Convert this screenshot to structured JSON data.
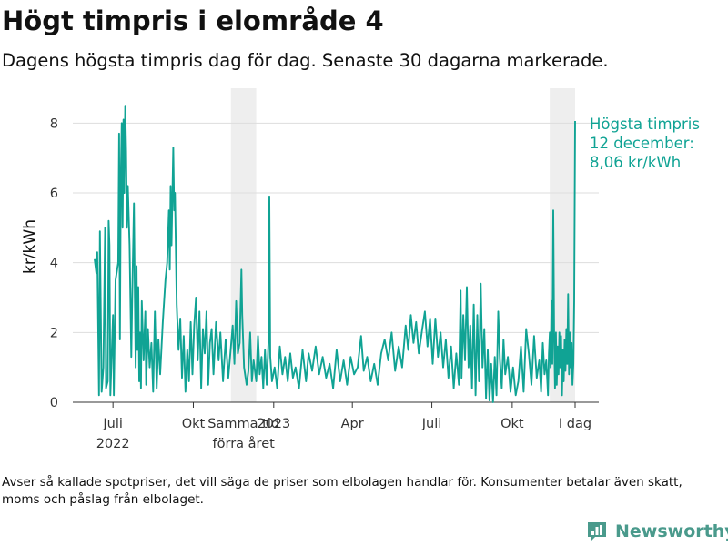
{
  "title": "Högt timpris i elområde 4",
  "subtitle": "Dagens högsta timpris dag för dag. Senaste 30 dagarna markerade.",
  "footnote": "Avser så kallade spotpriser, det vill säga de priser som elbolagen handlar för. Konsumenter betalar även skatt, moms och påslag från elbolaget.",
  "brand": {
    "name": "Newsworthy",
    "color": "#4a9a8c"
  },
  "colors": {
    "line": "#10a394",
    "highlight_band": "#eeeeee",
    "grid": "#dddddd",
    "axis": "#333333"
  },
  "chart_data": {
    "type": "line",
    "title": "Högt timpris i elområde 4",
    "ylabel": "kr/kWh",
    "xlabel": "",
    "ylim": [
      0,
      9
    ],
    "y_ticks": [
      {
        "value": 0,
        "label": "0"
      },
      {
        "value": 2,
        "label": "2"
      },
      {
        "value": 4,
        "label": "4"
      },
      {
        "value": 6,
        "label": "6"
      },
      {
        "value": 8,
        "label": "8"
      }
    ],
    "x_range": [
      "2022-06-10",
      "2023-12-12"
    ],
    "x_ticks": [
      {
        "date": "2022-07-01",
        "label": "Juli",
        "label2": "2022"
      },
      {
        "date": "2022-10-01",
        "label": "Okt"
      },
      {
        "date": "2023-01-01",
        "label": "2023"
      },
      {
        "date": "2023-04-01",
        "label": "Apr"
      },
      {
        "date": "2023-07-01",
        "label": "Juli"
      },
      {
        "date": "2023-10-01",
        "label": "Okt"
      },
      {
        "date": "2023-12-12",
        "label": "I dag"
      }
    ],
    "highlight_bands": [
      {
        "start": "2022-11-13",
        "end": "2022-12-12",
        "label": "Samma tid",
        "label2": "förra året"
      },
      {
        "start": "2023-11-13",
        "end": "2023-12-12"
      }
    ],
    "annotation": {
      "date": "2023-12-12",
      "value": 8.06,
      "lines": [
        "Högsta timpris",
        "12 december:",
        "8,06 kr/kWh"
      ]
    },
    "grid": "horizontal",
    "series": [
      {
        "points": [
          [
            "2022-06-10",
            4.1
          ],
          [
            "2022-06-12",
            3.7
          ],
          [
            "2022-06-13",
            4.3
          ],
          [
            "2022-06-15",
            0.2
          ],
          [
            "2022-06-16",
            4.9
          ],
          [
            "2022-06-18",
            0.3
          ],
          [
            "2022-06-20",
            1.0
          ],
          [
            "2022-06-22",
            5.0
          ],
          [
            "2022-06-23",
            0.4
          ],
          [
            "2022-06-25",
            0.6
          ],
          [
            "2022-06-26",
            5.2
          ],
          [
            "2022-06-27",
            4.5
          ],
          [
            "2022-06-28",
            0.2
          ],
          [
            "2022-07-01",
            2.5
          ],
          [
            "2022-07-02",
            0.2
          ],
          [
            "2022-07-04",
            3.5
          ],
          [
            "2022-07-07",
            4.0
          ],
          [
            "2022-07-08",
            7.7
          ],
          [
            "2022-07-09",
            1.8
          ],
          [
            "2022-07-10",
            6.5
          ],
          [
            "2022-07-11",
            8.0
          ],
          [
            "2022-07-12",
            5.0
          ],
          [
            "2022-07-13",
            8.1
          ],
          [
            "2022-07-14",
            6.0
          ],
          [
            "2022-07-15",
            8.5
          ],
          [
            "2022-07-16",
            7.2
          ],
          [
            "2022-07-17",
            5.0
          ],
          [
            "2022-07-18",
            6.2
          ],
          [
            "2022-07-20",
            4.5
          ],
          [
            "2022-07-22",
            1.3
          ],
          [
            "2022-07-23",
            3.0
          ],
          [
            "2022-07-25",
            5.7
          ],
          [
            "2022-07-26",
            3.0
          ],
          [
            "2022-07-27",
            1.0
          ],
          [
            "2022-07-28",
            3.9
          ],
          [
            "2022-07-29",
            1.5
          ],
          [
            "2022-07-30",
            3.3
          ],
          [
            "2022-07-31",
            0.6
          ],
          [
            "2022-08-01",
            2.0
          ],
          [
            "2022-08-02",
            0.4
          ],
          [
            "2022-08-03",
            2.9
          ],
          [
            "2022-08-05",
            1.2
          ],
          [
            "2022-08-07",
            2.6
          ],
          [
            "2022-08-08",
            0.5
          ],
          [
            "2022-08-10",
            2.1
          ],
          [
            "2022-08-12",
            1.0
          ],
          [
            "2022-08-14",
            1.7
          ],
          [
            "2022-08-16",
            0.3
          ],
          [
            "2022-08-18",
            2.6
          ],
          [
            "2022-08-20",
            0.4
          ],
          [
            "2022-08-22",
            1.8
          ],
          [
            "2022-08-24",
            0.8
          ],
          [
            "2022-08-27",
            2.3
          ],
          [
            "2022-08-30",
            3.5
          ],
          [
            "2022-09-01",
            4.0
          ],
          [
            "2022-09-03",
            5.5
          ],
          [
            "2022-09-04",
            3.8
          ],
          [
            "2022-09-05",
            6.2
          ],
          [
            "2022-09-06",
            4.5
          ],
          [
            "2022-09-08",
            7.3
          ],
          [
            "2022-09-09",
            5.5
          ],
          [
            "2022-09-10",
            6.0
          ],
          [
            "2022-09-12",
            2.8
          ],
          [
            "2022-09-14",
            1.5
          ],
          [
            "2022-09-16",
            2.4
          ],
          [
            "2022-09-18",
            0.7
          ],
          [
            "2022-09-20",
            1.9
          ],
          [
            "2022-09-22",
            0.3
          ],
          [
            "2022-09-24",
            1.5
          ],
          [
            "2022-09-26",
            0.6
          ],
          [
            "2022-09-28",
            2.3
          ],
          [
            "2022-09-30",
            0.8
          ],
          [
            "2022-10-02",
            2.2
          ],
          [
            "2022-10-04",
            3.0
          ],
          [
            "2022-10-06",
            1.2
          ],
          [
            "2022-10-08",
            2.6
          ],
          [
            "2022-10-10",
            0.4
          ],
          [
            "2022-10-12",
            2.1
          ],
          [
            "2022-10-14",
            1.4
          ],
          [
            "2022-10-16",
            2.6
          ],
          [
            "2022-10-18",
            0.5
          ],
          [
            "2022-10-20",
            1.7
          ],
          [
            "2022-10-22",
            2.1
          ],
          [
            "2022-10-24",
            0.8
          ],
          [
            "2022-10-27",
            2.3
          ],
          [
            "2022-10-30",
            1.2
          ],
          [
            "2022-11-01",
            2.0
          ],
          [
            "2022-11-04",
            0.6
          ],
          [
            "2022-11-07",
            1.8
          ],
          [
            "2022-11-10",
            0.7
          ],
          [
            "2022-11-13",
            1.6
          ],
          [
            "2022-11-15",
            2.2
          ],
          [
            "2022-11-17",
            1.1
          ],
          [
            "2022-11-19",
            2.9
          ],
          [
            "2022-11-21",
            1.4
          ],
          [
            "2022-11-23",
            1.7
          ],
          [
            "2022-11-25",
            3.8
          ],
          [
            "2022-11-26",
            2.5
          ],
          [
            "2022-11-28",
            1.0
          ],
          [
            "2022-12-01",
            0.5
          ],
          [
            "2022-12-03",
            0.9
          ],
          [
            "2022-12-05",
            2.0
          ],
          [
            "2022-12-07",
            0.6
          ],
          [
            "2022-12-09",
            1.2
          ],
          [
            "2022-12-12",
            0.6
          ],
          [
            "2022-12-14",
            1.9
          ],
          [
            "2022-12-16",
            0.8
          ],
          [
            "2022-12-18",
            1.3
          ],
          [
            "2022-12-20",
            0.4
          ],
          [
            "2022-12-22",
            1.5
          ],
          [
            "2022-12-24",
            0.5
          ],
          [
            "2022-12-26",
            1.7
          ],
          [
            "2022-12-27",
            5.9
          ],
          [
            "2022-12-28",
            1.3
          ],
          [
            "2022-12-30",
            0.6
          ],
          [
            "2023-01-02",
            1.0
          ],
          [
            "2023-01-05",
            0.4
          ],
          [
            "2023-01-08",
            1.6
          ],
          [
            "2023-01-11",
            0.8
          ],
          [
            "2023-01-14",
            1.3
          ],
          [
            "2023-01-17",
            0.6
          ],
          [
            "2023-01-20",
            1.4
          ],
          [
            "2023-01-23",
            0.7
          ],
          [
            "2023-01-26",
            1.0
          ],
          [
            "2023-01-30",
            0.4
          ],
          [
            "2023-02-03",
            1.5
          ],
          [
            "2023-02-07",
            0.6
          ],
          [
            "2023-02-10",
            1.4
          ],
          [
            "2023-02-14",
            0.9
          ],
          [
            "2023-02-18",
            1.6
          ],
          [
            "2023-02-22",
            0.8
          ],
          [
            "2023-02-26",
            1.3
          ],
          [
            "2023-03-02",
            0.7
          ],
          [
            "2023-03-06",
            1.1
          ],
          [
            "2023-03-10",
            0.4
          ],
          [
            "2023-03-14",
            1.5
          ],
          [
            "2023-03-18",
            0.6
          ],
          [
            "2023-03-22",
            1.2
          ],
          [
            "2023-03-26",
            0.5
          ],
          [
            "2023-03-30",
            1.3
          ],
          [
            "2023-04-03",
            0.8
          ],
          [
            "2023-04-07",
            1.0
          ],
          [
            "2023-04-11",
            1.9
          ],
          [
            "2023-04-14",
            0.9
          ],
          [
            "2023-04-18",
            1.3
          ],
          [
            "2023-04-22",
            0.6
          ],
          [
            "2023-04-26",
            1.1
          ],
          [
            "2023-04-30",
            0.5
          ],
          [
            "2023-05-04",
            1.4
          ],
          [
            "2023-05-08",
            1.8
          ],
          [
            "2023-05-12",
            1.2
          ],
          [
            "2023-05-16",
            2.0
          ],
          [
            "2023-05-20",
            0.9
          ],
          [
            "2023-05-24",
            1.6
          ],
          [
            "2023-05-28",
            1.0
          ],
          [
            "2023-06-01",
            2.2
          ],
          [
            "2023-06-04",
            1.5
          ],
          [
            "2023-06-07",
            2.5
          ],
          [
            "2023-06-10",
            1.7
          ],
          [
            "2023-06-13",
            2.3
          ],
          [
            "2023-06-16",
            1.4
          ],
          [
            "2023-06-20",
            2.1
          ],
          [
            "2023-06-23",
            2.6
          ],
          [
            "2023-06-26",
            1.6
          ],
          [
            "2023-06-29",
            2.4
          ],
          [
            "2023-07-02",
            1.1
          ],
          [
            "2023-07-05",
            2.4
          ],
          [
            "2023-07-08",
            1.3
          ],
          [
            "2023-07-11",
            2.0
          ],
          [
            "2023-07-14",
            1.0
          ],
          [
            "2023-07-17",
            1.8
          ],
          [
            "2023-07-20",
            0.7
          ],
          [
            "2023-07-23",
            1.6
          ],
          [
            "2023-07-26",
            0.4
          ],
          [
            "2023-07-29",
            1.4
          ],
          [
            "2023-08-01",
            0.5
          ],
          [
            "2023-08-03",
            3.2
          ],
          [
            "2023-08-04",
            0.7
          ],
          [
            "2023-08-06",
            2.5
          ],
          [
            "2023-08-08",
            1.2
          ],
          [
            "2023-08-10",
            3.3
          ],
          [
            "2023-08-12",
            1.0
          ],
          [
            "2023-08-14",
            2.2
          ],
          [
            "2023-08-16",
            0.4
          ],
          [
            "2023-08-18",
            2.8
          ],
          [
            "2023-08-20",
            0.2
          ],
          [
            "2023-08-22",
            2.5
          ],
          [
            "2023-08-24",
            0.6
          ],
          [
            "2023-08-26",
            3.4
          ],
          [
            "2023-08-28",
            1.0
          ],
          [
            "2023-08-30",
            2.1
          ],
          [
            "2023-09-01",
            0.1
          ],
          [
            "2023-09-03",
            1.5
          ],
          [
            "2023-09-05",
            0.05
          ],
          [
            "2023-09-07",
            1.1
          ],
          [
            "2023-09-09",
            0.0
          ],
          [
            "2023-09-11",
            1.3
          ],
          [
            "2023-09-13",
            0.2
          ],
          [
            "2023-09-15",
            2.6
          ],
          [
            "2023-09-17",
            1.2
          ],
          [
            "2023-09-19",
            0.4
          ],
          [
            "2023-09-21",
            1.8
          ],
          [
            "2023-09-23",
            0.8
          ],
          [
            "2023-09-26",
            1.3
          ],
          [
            "2023-09-29",
            0.3
          ],
          [
            "2023-10-02",
            1.0
          ],
          [
            "2023-10-05",
            0.2
          ],
          [
            "2023-10-08",
            0.6
          ],
          [
            "2023-10-11",
            1.6
          ],
          [
            "2023-10-14",
            0.3
          ],
          [
            "2023-10-17",
            2.1
          ],
          [
            "2023-10-20",
            1.4
          ],
          [
            "2023-10-23",
            0.5
          ],
          [
            "2023-10-26",
            1.9
          ],
          [
            "2023-10-29",
            0.7
          ],
          [
            "2023-11-01",
            1.2
          ],
          [
            "2023-11-03",
            0.3
          ],
          [
            "2023-11-05",
            1.7
          ],
          [
            "2023-11-07",
            0.8
          ],
          [
            "2023-11-09",
            1.2
          ],
          [
            "2023-11-11",
            0.2
          ],
          [
            "2023-11-12",
            1.4
          ],
          [
            "2023-11-13",
            2.0
          ],
          [
            "2023-11-14",
            1.0
          ],
          [
            "2023-11-15",
            2.9
          ],
          [
            "2023-11-16",
            1.1
          ],
          [
            "2023-11-17",
            5.5
          ],
          [
            "2023-11-18",
            1.8
          ],
          [
            "2023-11-19",
            0.4
          ],
          [
            "2023-11-20",
            2.0
          ],
          [
            "2023-11-21",
            0.5
          ],
          [
            "2023-11-22",
            1.6
          ],
          [
            "2023-11-23",
            0.8
          ],
          [
            "2023-11-24",
            2.0
          ],
          [
            "2023-11-25",
            1.0
          ],
          [
            "2023-11-26",
            1.9
          ],
          [
            "2023-11-27",
            0.2
          ],
          [
            "2023-11-28",
            1.5
          ],
          [
            "2023-11-29",
            0.6
          ],
          [
            "2023-11-30",
            1.8
          ],
          [
            "2023-12-01",
            0.9
          ],
          [
            "2023-12-02",
            2.1
          ],
          [
            "2023-12-03",
            1.1
          ],
          [
            "2023-12-04",
            3.1
          ],
          [
            "2023-12-05",
            0.8
          ],
          [
            "2023-12-06",
            2.0
          ],
          [
            "2023-12-07",
            1.0
          ],
          [
            "2023-12-08",
            1.7
          ],
          [
            "2023-12-09",
            0.5
          ],
          [
            "2023-12-10",
            1.1
          ],
          [
            "2023-12-11",
            2.9
          ],
          [
            "2023-12-12",
            8.06
          ]
        ]
      }
    ]
  }
}
